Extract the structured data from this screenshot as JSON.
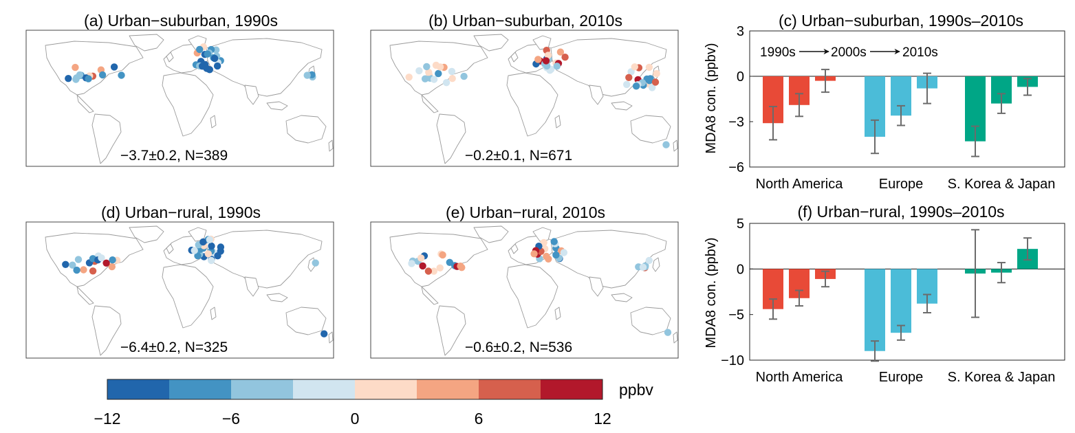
{
  "maps": [
    {
      "id": "a",
      "title": "(a) Urban−suburban, 1990s",
      "stat": "−3.7±0.2, N=389"
    },
    {
      "id": "b",
      "title": "(b) Urban−suburban, 2010s",
      "stat": "−0.2±0.1, N=671"
    },
    {
      "id": "d",
      "title": "(d) Urban−rural, 1990s",
      "stat": "−6.4±0.2, N=325"
    },
    {
      "id": "e",
      "title": "(e) Urban−rural, 2010s",
      "stat": "−0.6±0.2, N=536"
    }
  ],
  "colorbar": {
    "unit": "ppbv",
    "ticks": [
      "−12",
      "−6",
      "0",
      "6",
      "12"
    ],
    "colors": [
      "#2166ac",
      "#4393c3",
      "#92c5de",
      "#d1e5f0",
      "#fddbc7",
      "#f4a582",
      "#d6604d",
      "#b2182b"
    ]
  },
  "legend_text": {
    "s1": "1990s",
    "s2": "2000s",
    "s3": "2010s"
  },
  "chart_data": [
    {
      "id": "c",
      "type": "bar",
      "title": "(c) Urban−suburban, 1990s–2010s",
      "ylabel": "MDA8 con. (ppbv)",
      "ylim": [
        -6,
        3
      ],
      "yticks": [
        3,
        0,
        -3,
        -6
      ],
      "ytick_labels": [
        "3",
        "0",
        "−3",
        "−6"
      ],
      "categories": [
        "North America",
        "Europe",
        "S. Korea & Japan"
      ],
      "group_colors": [
        "#e84a37",
        "#4bbcd8",
        "#00a686"
      ],
      "series": [
        {
          "name": "1990s",
          "values": [
            -3.1,
            -4.0,
            -4.3
          ],
          "errors": [
            1.1,
            1.1,
            1.0
          ]
        },
        {
          "name": "2000s",
          "values": [
            -1.9,
            -2.6,
            -1.8
          ],
          "errors": [
            0.75,
            0.65,
            0.65
          ]
        },
        {
          "name": "2010s",
          "values": [
            -0.3,
            -0.8,
            -0.7
          ],
          "errors": [
            0.75,
            1.0,
            0.55
          ]
        }
      ]
    },
    {
      "id": "f",
      "type": "bar",
      "title": "(f) Urban−rural, 1990s–2010s",
      "ylabel": "MDA8 con. (ppbv)",
      "ylim": [
        -10,
        5
      ],
      "yticks": [
        5,
        0,
        -5,
        -10
      ],
      "ytick_labels": [
        "5",
        "0",
        "−5",
        "−10"
      ],
      "categories": [
        "North America",
        "Europe",
        "S. Korea & Japan"
      ],
      "group_colors": [
        "#e84a37",
        "#4bbcd8",
        "#00a686"
      ],
      "series": [
        {
          "name": "1990s",
          "values": [
            -4.4,
            -9.0,
            -0.5
          ],
          "errors": [
            1.1,
            1.1,
            4.8
          ]
        },
        {
          "name": "2000s",
          "values": [
            -3.2,
            -7.0,
            -0.4
          ],
          "errors": [
            0.85,
            0.8,
            1.1
          ]
        },
        {
          "name": "2010s",
          "values": [
            -1.1,
            -3.8,
            2.2
          ],
          "errors": [
            0.85,
            1.0,
            1.2
          ]
        }
      ]
    }
  ]
}
